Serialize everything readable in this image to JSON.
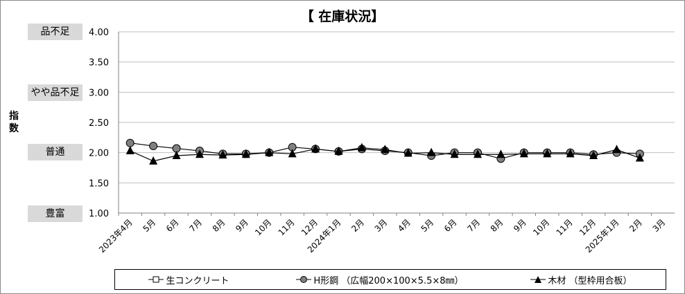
{
  "chart_data": {
    "type": "line",
    "title": "【 在庫状況】",
    "ylabel": "指数",
    "ylim": [
      1.0,
      4.0
    ],
    "yticks": [
      "1.00",
      "1.50",
      "2.00",
      "2.50",
      "3.00",
      "3.50",
      "4.00"
    ],
    "levels": [
      {
        "label": "品不足",
        "value": 4.0
      },
      {
        "label": "やや品不足",
        "value": 3.0
      },
      {
        "label": "普通",
        "value": 2.0
      },
      {
        "label": "豊富",
        "value": 1.0
      }
    ],
    "categories": [
      "2023年4月",
      "5月",
      "6月",
      "7月",
      "8月",
      "9月",
      "10月",
      "11月",
      "12月",
      "2024年1月",
      "2月",
      "3月",
      "4月",
      "5月",
      "6月",
      "7月",
      "8月",
      "9月",
      "10月",
      "11月",
      "12月",
      "2025年1月",
      "2月",
      "3月"
    ],
    "grid": true,
    "legend": "bottom",
    "series": [
      {
        "name": "生コンクリート",
        "marker": "square",
        "values": [
          null,
          null,
          null,
          null,
          null,
          null,
          null,
          null,
          null,
          null,
          null,
          null,
          null,
          null,
          null,
          null,
          null,
          null,
          null,
          null,
          null,
          null,
          null,
          null
        ]
      },
      {
        "name": "H形鋼 （広幅200×100×5.5×8㎜）",
        "marker": "circle",
        "values": [
          2.16,
          2.11,
          2.07,
          2.03,
          1.98,
          1.98,
          2.0,
          2.09,
          2.06,
          2.02,
          2.06,
          2.03,
          2.0,
          1.95,
          2.0,
          2.0,
          1.9,
          2.0,
          2.0,
          2.0,
          1.97,
          2.0,
          1.98,
          null
        ]
      },
      {
        "name": "木材 （型枠用合板）",
        "marker": "triangle",
        "values": [
          2.03,
          1.86,
          1.95,
          1.97,
          1.96,
          1.97,
          2.0,
          1.98,
          2.06,
          2.02,
          2.08,
          2.05,
          1.99,
          2.0,
          1.97,
          1.97,
          1.97,
          1.98,
          1.98,
          1.98,
          1.95,
          2.05,
          1.91,
          null
        ]
      }
    ]
  }
}
